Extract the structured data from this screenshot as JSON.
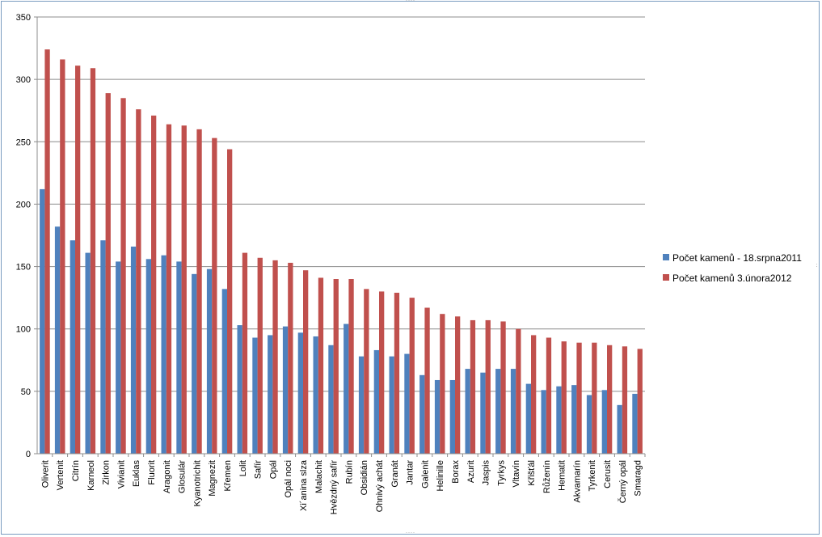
{
  "chart_data": {
    "type": "bar",
    "title": "",
    "xlabel": "",
    "ylabel": "",
    "ylim": [
      0,
      350
    ],
    "yticks": [
      0,
      50,
      100,
      150,
      200,
      250,
      300,
      350
    ],
    "grid": true,
    "legend_position": "right",
    "categories": [
      "Oliverit",
      "Vertenit",
      "Citrín",
      "Karneol",
      "Zirkon",
      "Vivianit",
      "Euklas",
      "Fluorit",
      "Aragonit",
      "Glosulár",
      "Kyanotrichit",
      "Magnezit",
      "Křemen",
      "Lolit",
      "Safír",
      "Opál",
      "Opál noci",
      "Xi´anina slza",
      "Malachit",
      "Hvězdný safír",
      "Rubín",
      "Obsidián",
      "Ohnivý achát",
      "Granát",
      "Jantar",
      "Galenit",
      "Helinille",
      "Borax",
      "Azurit",
      "Jaspis",
      "Tyrkys",
      "Vltavín",
      "Křišťál",
      "Růženín",
      "Hematit",
      "Akvamarín",
      "Tyrkenit",
      "Cerusit",
      "Černý opál",
      "Smaragd"
    ],
    "series": [
      {
        "name": "Počet kamenů - 18.srpna2011",
        "color": "#4f81bd",
        "values": [
          212,
          182,
          171,
          161,
          171,
          154,
          166,
          156,
          159,
          154,
          144,
          148,
          132,
          103,
          93,
          95,
          102,
          97,
          94,
          87,
          104,
          78,
          83,
          78,
          80,
          63,
          59,
          59,
          68,
          65,
          68,
          68,
          56,
          51,
          54,
          55,
          47,
          51,
          39,
          48
        ]
      },
      {
        "name": "Počet kamenů 3.února2012",
        "color": "#c0504d",
        "values": [
          324,
          316,
          311,
          309,
          289,
          285,
          276,
          271,
          264,
          263,
          260,
          253,
          244,
          161,
          157,
          155,
          153,
          147,
          141,
          140,
          140,
          132,
          130,
          129,
          125,
          117,
          112,
          110,
          107,
          107,
          106,
          100,
          95,
          93,
          90,
          89,
          89,
          87,
          86,
          84
        ]
      }
    ]
  }
}
